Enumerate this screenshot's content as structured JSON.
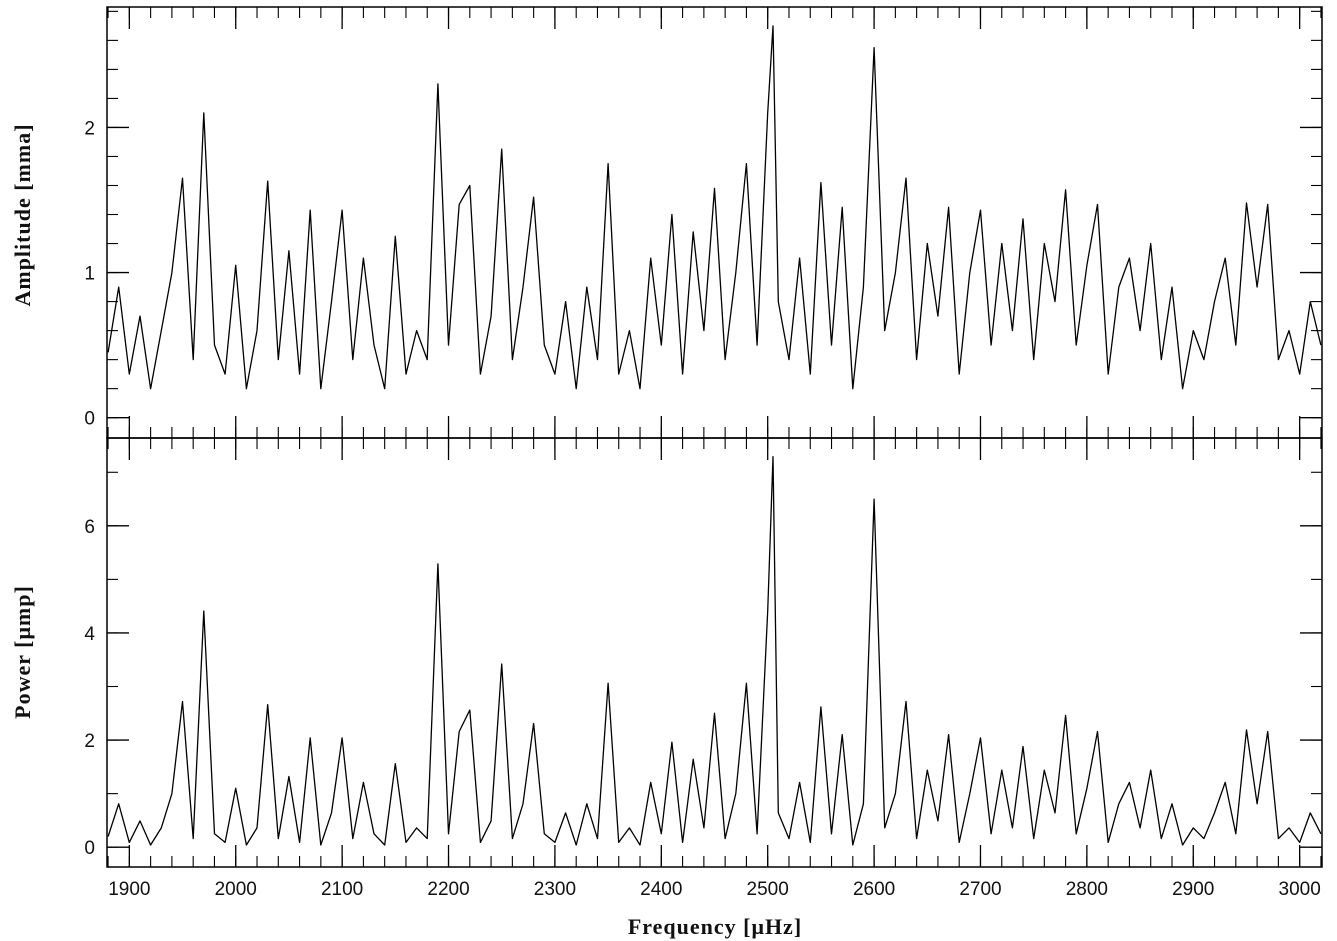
{
  "chart_data": [
    {
      "type": "line",
      "ylabel": "Amplitude [mma]",
      "color": "#000000",
      "xlim": [
        1879,
        3021
      ],
      "ylim": [
        -0.14,
        2.83
      ],
      "yticks": [
        0,
        1,
        2
      ],
      "x": [
        1880,
        1890,
        1900,
        1910,
        1920,
        1930,
        1940,
        1950,
        1960,
        1970,
        1980,
        1990,
        2000,
        2010,
        2020,
        2030,
        2040,
        2050,
        2060,
        2070,
        2080,
        2090,
        2100,
        2110,
        2120,
        2130,
        2140,
        2150,
        2160,
        2170,
        2180,
        2190,
        2200,
        2210,
        2220,
        2230,
        2240,
        2250,
        2260,
        2270,
        2280,
        2290,
        2300,
        2310,
        2320,
        2330,
        2340,
        2350,
        2360,
        2370,
        2380,
        2390,
        2400,
        2410,
        2420,
        2430,
        2440,
        2450,
        2460,
        2470,
        2480,
        2490,
        2500,
        2505,
        2510,
        2520,
        2530,
        2540,
        2550,
        2560,
        2570,
        2580,
        2590,
        2600,
        2610,
        2620,
        2630,
        2640,
        2650,
        2660,
        2670,
        2680,
        2690,
        2700,
        2710,
        2720,
        2730,
        2740,
        2750,
        2760,
        2770,
        2780,
        2790,
        2800,
        2810,
        2820,
        2830,
        2840,
        2850,
        2860,
        2870,
        2880,
        2890,
        2900,
        2910,
        2920,
        2930,
        2940,
        2950,
        2960,
        2970,
        2980,
        2990,
        3000,
        3010,
        3020
      ],
      "values": [
        0.45,
        0.9,
        0.3,
        0.7,
        0.2,
        0.6,
        1.0,
        1.65,
        0.4,
        2.1,
        0.5,
        0.3,
        1.05,
        0.2,
        0.6,
        1.63,
        0.4,
        1.15,
        0.3,
        1.43,
        0.2,
        0.8,
        1.43,
        0.4,
        1.1,
        0.5,
        0.2,
        1.25,
        0.3,
        0.6,
        0.4,
        2.3,
        0.5,
        1.47,
        1.6,
        0.3,
        0.7,
        1.85,
        0.4,
        0.9,
        1.52,
        0.5,
        0.3,
        0.8,
        0.2,
        0.9,
        0.4,
        1.75,
        0.3,
        0.6,
        0.2,
        1.1,
        0.5,
        1.4,
        0.3,
        1.28,
        0.6,
        1.58,
        0.4,
        1.0,
        1.75,
        0.5,
        2.1,
        2.7,
        0.8,
        0.4,
        1.1,
        0.3,
        1.62,
        0.5,
        1.45,
        0.2,
        0.9,
        2.55,
        0.6,
        1.0,
        1.65,
        0.4,
        1.2,
        0.7,
        1.45,
        0.3,
        1.0,
        1.43,
        0.5,
        1.2,
        0.6,
        1.37,
        0.4,
        1.2,
        0.8,
        1.57,
        0.5,
        1.05,
        1.47,
        0.3,
        0.9,
        1.1,
        0.6,
        1.2,
        0.4,
        0.9,
        0.2,
        0.6,
        0.4,
        0.8,
        1.1,
        0.5,
        1.48,
        0.9,
        1.47,
        0.4,
        0.6,
        0.3,
        0.8,
        0.5
      ]
    },
    {
      "type": "line",
      "ylabel": "Power [μmp]",
      "xlabel": "Frequency [μHz]",
      "color": "#000000",
      "xlim": [
        1879,
        3021
      ],
      "ylim": [
        -0.37,
        7.64
      ],
      "yticks": [
        0,
        2,
        4,
        6
      ],
      "xticks": [
        1900,
        2000,
        2100,
        2200,
        2300,
        2400,
        2500,
        2600,
        2700,
        2800,
        2900,
        3000
      ],
      "x": [
        1880,
        1890,
        1900,
        1910,
        1920,
        1930,
        1940,
        1950,
        1960,
        1970,
        1980,
        1990,
        2000,
        2010,
        2020,
        2030,
        2040,
        2050,
        2060,
        2070,
        2080,
        2090,
        2100,
        2110,
        2120,
        2130,
        2140,
        2150,
        2160,
        2170,
        2180,
        2190,
        2200,
        2210,
        2220,
        2230,
        2240,
        2250,
        2260,
        2270,
        2280,
        2290,
        2300,
        2310,
        2320,
        2330,
        2340,
        2350,
        2360,
        2370,
        2380,
        2390,
        2400,
        2410,
        2420,
        2430,
        2440,
        2450,
        2460,
        2470,
        2480,
        2490,
        2500,
        2505,
        2510,
        2520,
        2530,
        2540,
        2550,
        2560,
        2570,
        2580,
        2590,
        2600,
        2610,
        2620,
        2630,
        2640,
        2650,
        2660,
        2670,
        2680,
        2690,
        2700,
        2710,
        2720,
        2730,
        2740,
        2750,
        2760,
        2770,
        2780,
        2790,
        2800,
        2810,
        2820,
        2830,
        2840,
        2850,
        2860,
        2870,
        2880,
        2890,
        2900,
        2910,
        2920,
        2930,
        2940,
        2950,
        2960,
        2970,
        2980,
        2990,
        3000,
        3010,
        3020
      ],
      "values": [
        0.2,
        0.81,
        0.09,
        0.49,
        0.04,
        0.36,
        1.0,
        2.72,
        0.16,
        4.41,
        0.25,
        0.09,
        1.1,
        0.04,
        0.36,
        2.66,
        0.16,
        1.32,
        0.09,
        2.04,
        0.04,
        0.64,
        2.04,
        0.16,
        1.21,
        0.25,
        0.04,
        1.56,
        0.09,
        0.36,
        0.16,
        5.29,
        0.25,
        2.16,
        2.56,
        0.09,
        0.49,
        3.42,
        0.16,
        0.81,
        2.31,
        0.25,
        0.09,
        0.64,
        0.04,
        0.81,
        0.16,
        3.06,
        0.09,
        0.36,
        0.04,
        1.21,
        0.25,
        1.96,
        0.09,
        1.64,
        0.36,
        2.5,
        0.16,
        1.0,
        3.06,
        0.25,
        4.41,
        7.29,
        0.64,
        0.16,
        1.21,
        0.09,
        2.62,
        0.25,
        2.1,
        0.04,
        0.81,
        6.5,
        0.36,
        1.0,
        2.72,
        0.16,
        1.44,
        0.49,
        2.1,
        0.09,
        1.0,
        2.04,
        0.25,
        1.44,
        0.36,
        1.88,
        0.16,
        1.44,
        0.64,
        2.46,
        0.25,
        1.1,
        2.16,
        0.09,
        0.81,
        1.21,
        0.36,
        1.44,
        0.16,
        0.81,
        0.04,
        0.36,
        0.16,
        0.64,
        1.21,
        0.25,
        2.19,
        0.81,
        2.16,
        0.16,
        0.36,
        0.09,
        0.64,
        0.25
      ]
    }
  ]
}
